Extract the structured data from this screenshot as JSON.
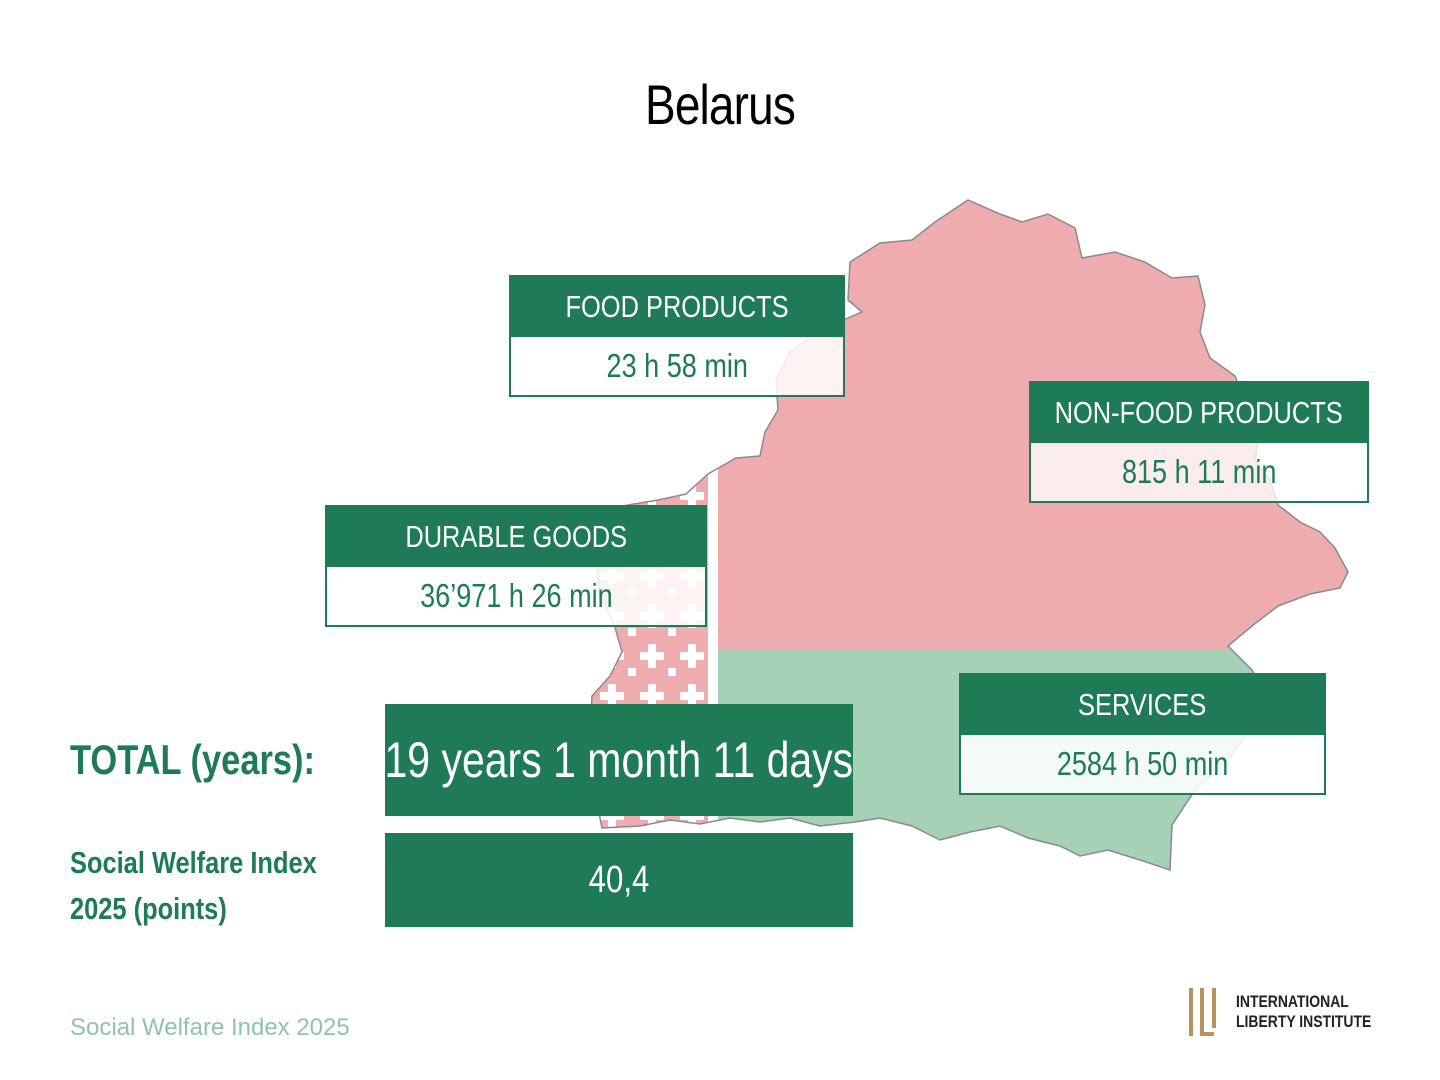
{
  "title": "Belarus",
  "categories": [
    {
      "id": "food",
      "label": "FOOD PRODUCTS",
      "value": "23 h 58 min"
    },
    {
      "id": "nonfood",
      "label": "NON-FOOD PRODUCTS",
      "value": "815 h 11 min"
    },
    {
      "id": "durable",
      "label": "DURABLE GOODS",
      "value": "36’971 h 26 min"
    },
    {
      "id": "services",
      "label": "SERVICES",
      "value": "2584 h 50 min"
    }
  ],
  "total": {
    "label": "TOTAL (years):",
    "value": "19 years 1 month 11 days"
  },
  "index": {
    "label_line1": "Social Welfare Index",
    "label_line2": "2025 (points)",
    "value": "40,4"
  },
  "footer": "Social Welfare Index 2025",
  "logo": {
    "line1": "INTERNATIONAL",
    "line2": "LIBERTY INSTITUTE"
  },
  "colors": {
    "green": "#1e7b55",
    "flag_red": "#eeacaf",
    "flag_green": "#a7d1b7",
    "footer": "#8fc3ad",
    "logo_gold": "#b8925e"
  }
}
